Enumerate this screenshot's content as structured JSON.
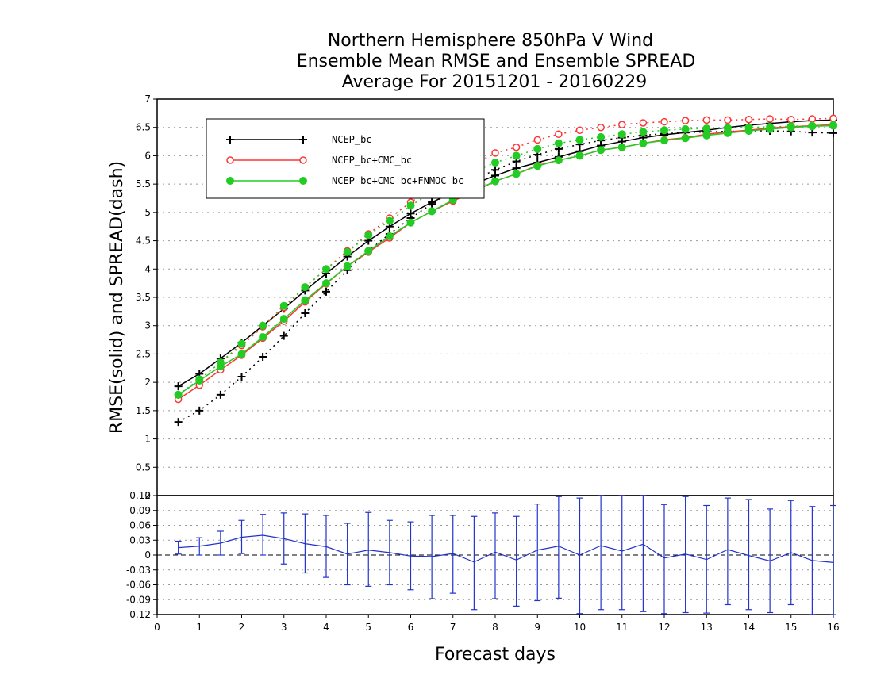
{
  "chart_data": [
    {
      "type": "line",
      "title": "Northern Hemisphere 850hPa V Wind",
      "subtitle": "Ensemble Mean RMSE and Ensemble SPREAD",
      "subtitle2": "Average For 20151201 - 20160229",
      "xlabel": "Forecast days",
      "ylabel": "RMSE(solid) and SPREAD(dash)",
      "xlim": [
        0,
        16
      ],
      "ylim": [
        0,
        7
      ],
      "grid": true,
      "legend_position": "top-left",
      "x_ticks": [
        "0",
        "1",
        "2",
        "3",
        "4",
        "5",
        "6",
        "7",
        "8",
        "9",
        "10",
        "11",
        "12",
        "13",
        "14",
        "15",
        "16"
      ],
      "y_ticks": [
        "0.5",
        "1",
        "1.5",
        "2",
        "2.5",
        "3",
        "3.5",
        "4",
        "4.5",
        "5",
        "5.5",
        "6",
        "6.5",
        "7"
      ],
      "x": [
        0.5,
        1,
        1.5,
        2,
        2.5,
        3,
        3.5,
        4,
        4.5,
        5,
        5.5,
        6,
        6.5,
        7,
        7.5,
        8,
        8.5,
        9,
        9.5,
        10,
        10.5,
        11,
        11.5,
        12,
        12.5,
        13,
        13.5,
        14,
        14.5,
        15,
        15.5,
        16
      ],
      "series": [
        {
          "name": "NCEP_bc",
          "color": "#000000",
          "marker": "plus",
          "rmse": [
            1.93,
            2.15,
            2.42,
            2.7,
            3.0,
            3.3,
            3.62,
            3.92,
            4.22,
            4.5,
            4.75,
            4.98,
            5.18,
            5.35,
            5.5,
            5.65,
            5.78,
            5.88,
            5.98,
            6.08,
            6.18,
            6.25,
            6.32,
            6.37,
            6.41,
            6.45,
            6.5,
            6.54,
            6.57,
            6.6,
            6.62,
            6.63
          ],
          "spread": [
            1.3,
            1.5,
            1.78,
            2.1,
            2.45,
            2.82,
            3.22,
            3.6,
            3.98,
            4.32,
            4.62,
            4.9,
            5.15,
            5.38,
            5.58,
            5.75,
            5.9,
            6.02,
            6.12,
            6.2,
            6.27,
            6.32,
            6.36,
            6.39,
            6.41,
            6.42,
            6.43,
            6.44,
            6.44,
            6.43,
            6.41,
            6.4
          ]
        },
        {
          "name": "NCEP_bc+CMC_bc",
          "color": "#ff3333",
          "marker": "circle-open",
          "rmse": [
            1.7,
            1.95,
            2.22,
            2.48,
            2.78,
            3.08,
            3.42,
            3.74,
            4.05,
            4.3,
            4.55,
            4.82,
            5.02,
            5.2,
            5.37,
            5.55,
            5.68,
            5.83,
            5.92,
            6.0,
            6.1,
            6.15,
            6.22,
            6.28,
            6.32,
            6.38,
            6.42,
            6.45,
            6.49,
            6.51,
            6.53,
            6.55
          ],
          "spread": [
            1.78,
            2.05,
            2.35,
            2.65,
            2.98,
            3.32,
            3.68,
            4.0,
            4.32,
            4.62,
            4.9,
            5.18,
            5.42,
            5.65,
            5.85,
            6.05,
            6.15,
            6.28,
            6.38,
            6.45,
            6.5,
            6.55,
            6.58,
            6.6,
            6.62,
            6.63,
            6.63,
            6.64,
            6.65,
            6.64,
            6.65,
            6.66
          ]
        },
        {
          "name": "NCEP_bc+CMC_bc+FNMOC_bc",
          "color": "#22cc22",
          "marker": "circle-filled",
          "rmse": [
            1.78,
            2.03,
            2.28,
            2.5,
            2.8,
            3.12,
            3.45,
            3.75,
            4.05,
            4.32,
            4.58,
            4.82,
            5.02,
            5.22,
            5.38,
            5.55,
            5.68,
            5.82,
            5.92,
            6.0,
            6.1,
            6.15,
            6.22,
            6.27,
            6.31,
            6.36,
            6.4,
            6.44,
            6.47,
            6.5,
            6.52,
            6.53
          ],
          "spread": [
            1.78,
            2.05,
            2.35,
            2.68,
            3.0,
            3.35,
            3.68,
            4.0,
            4.3,
            4.6,
            4.85,
            5.12,
            5.35,
            5.55,
            5.72,
            5.88,
            6.0,
            6.12,
            6.22,
            6.28,
            6.33,
            6.38,
            6.42,
            6.45,
            6.47,
            6.48,
            6.49,
            6.5,
            6.51,
            6.52,
            6.53,
            6.54
          ]
        }
      ]
    },
    {
      "type": "errorbar",
      "xlim": [
        0,
        16
      ],
      "ylim": [
        -0.12,
        0.12
      ],
      "grid": true,
      "x_ticks": [
        "0",
        "1",
        "2",
        "3",
        "4",
        "5",
        "6",
        "7",
        "8",
        "9",
        "10",
        "11",
        "12",
        "13",
        "14",
        "15",
        "16"
      ],
      "y_ticks": [
        "-0.12",
        "-0.09",
        "-0.06",
        "-0.03",
        "0",
        "0.03",
        "0.06",
        "0.09",
        "0.12"
      ],
      "x": [
        0.5,
        1,
        1.5,
        2,
        2.5,
        3,
        3.5,
        4,
        4.5,
        5,
        5.5,
        6,
        6.5,
        7,
        7.5,
        8,
        8.5,
        9,
        9.5,
        10,
        10.5,
        11,
        11.5,
        12,
        12.5,
        13,
        13.5,
        14,
        14.5,
        15,
        15.5,
        16
      ],
      "color": "#2233cc",
      "values": [
        0.015,
        0.018,
        0.024,
        0.036,
        0.04,
        0.033,
        0.023,
        0.017,
        0.002,
        0.01,
        0.005,
        -0.002,
        -0.003,
        0.003,
        -0.014,
        0.006,
        -0.01,
        0.01,
        0.018,
        0.0,
        0.019,
        0.008,
        0.022,
        -0.006,
        0.002,
        -0.009,
        0.011,
        -0.001,
        -0.012,
        0.005,
        -0.011,
        -0.015
      ],
      "upper": [
        0.028,
        0.035,
        0.048,
        0.07,
        0.082,
        0.085,
        0.083,
        0.08,
        0.064,
        0.086,
        0.07,
        0.067,
        0.08,
        0.08,
        0.078,
        0.085,
        0.078,
        0.103,
        0.118,
        0.115,
        0.14,
        0.128,
        0.132,
        0.102,
        0.118,
        0.1,
        0.115,
        0.112,
        0.093,
        0.11,
        0.098,
        0.1
      ],
      "lower": [
        0.002,
        0.0,
        0.0,
        0.003,
        0.0,
        -0.018,
        -0.036,
        -0.045,
        -0.06,
        -0.063,
        -0.06,
        -0.07,
        -0.088,
        -0.077,
        -0.11,
        -0.088,
        -0.103,
        -0.092,
        -0.087,
        -0.118,
        -0.11,
        -0.11,
        -0.114,
        -0.118,
        -0.116,
        -0.117,
        -0.1,
        -0.11,
        -0.116,
        -0.1,
        -0.12,
        -0.12
      ]
    }
  ]
}
